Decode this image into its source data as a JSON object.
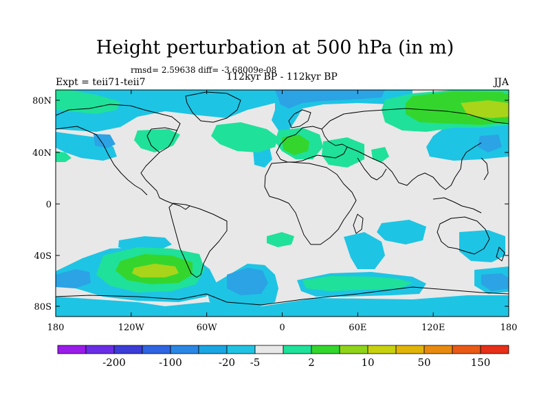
{
  "title": "Height perturbation at 500 hPa (in m)",
  "stats_line": "rmsd= 2.59638 diff= -3.68009e-08",
  "left_label": "Expt = teii71-teii7",
  "center_label": "112kyr BP - 112kyr BP",
  "right_label": "JJA",
  "lat_ticks": [
    "80N",
    "40N",
    "0",
    "40S",
    "80S"
  ],
  "lon_ticks": [
    "180",
    "120W",
    "60W",
    "0",
    "60E",
    "120E",
    "180"
  ],
  "colorbar": {
    "colors": [
      "#9a1ce8",
      "#6a2ee6",
      "#3c3cd6",
      "#2f64e2",
      "#2b87e4",
      "#1aa6e2",
      "#22c3e2",
      "#e8e8e8",
      "#1fe19a",
      "#34d62e",
      "#8fd41b",
      "#c8d10f",
      "#e1b40a",
      "#e88a10",
      "#e85a16",
      "#e6301a"
    ],
    "labels": [
      "-200",
      "-100",
      "-20",
      "-5",
      "2",
      "10",
      "50",
      "150"
    ],
    "label_after_box": [
      1,
      3,
      5,
      6,
      8,
      10,
      12,
      14
    ]
  },
  "map_colors": {
    "background": "#e8e8e8",
    "light_blue": "#1ec4e4",
    "mid_blue": "#2ba3e5",
    "dark_blue": "#2b87e4",
    "green_cyan": "#1fe19a",
    "green": "#34d62e",
    "yellow_green": "#a8d41a"
  }
}
